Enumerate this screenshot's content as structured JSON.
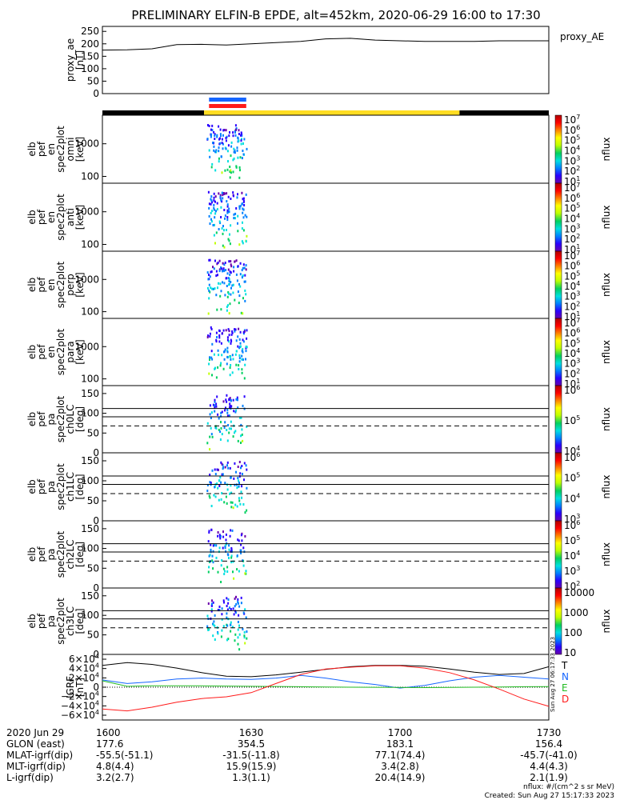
{
  "title": "PRELIMINARY ELFIN-B EPDE, alt=452km, 2020-06-29 16:00 to 17:30",
  "colors": {
    "black": "#000000",
    "blue": "#1565ff",
    "red": "#ff1a1a",
    "yellow": "#ffdd22",
    "green": "#22bb22",
    "colorbar_stops": [
      "#6a00aa",
      "#2a00ff",
      "#0080ff",
      "#00e0e0",
      "#00d060",
      "#c0ff00",
      "#ffff00",
      "#ff8000",
      "#ff0000",
      "#b00000"
    ]
  },
  "panels": [
    {
      "id": "proxy_ae",
      "ylabel": [
        "proxy_ae",
        "[nT]"
      ],
      "yticks": [
        "250",
        "200",
        "150",
        "100",
        "50",
        "0"
      ],
      "right_label": "proxy_AE"
    },
    {
      "id": "omni",
      "ylabel": [
        "elb",
        "pef",
        "en",
        "spec2plot",
        "omni",
        "[keV]"
      ],
      "yticks": [
        "1000",
        "100"
      ],
      "cbar_ticks": [
        "10^7",
        "10^6",
        "10^5",
        "10^4",
        "10^3",
        "10^2",
        "10^1"
      ],
      "cbar_label": "nflux"
    },
    {
      "id": "anti",
      "ylabel": [
        "elb",
        "pef",
        "en",
        "spec2plot",
        "anti",
        "[keV]"
      ],
      "yticks": [
        "1000",
        "100"
      ],
      "cbar_ticks": [
        "10^7",
        "10^6",
        "10^5",
        "10^4",
        "10^3",
        "10^2",
        "10^1"
      ],
      "cbar_label": "nflux"
    },
    {
      "id": "perp",
      "ylabel": [
        "elb",
        "pef",
        "en",
        "spec2plot",
        "perp",
        "[keV]"
      ],
      "yticks": [
        "1000",
        "100"
      ],
      "cbar_ticks": [
        "10^7",
        "10^6",
        "10^5",
        "10^4",
        "10^3",
        "10^2",
        "10^1"
      ],
      "cbar_label": "nflux"
    },
    {
      "id": "para",
      "ylabel": [
        "elb",
        "pef",
        "en",
        "spec2plot",
        "para",
        "[keV]"
      ],
      "yticks": [
        "1000",
        "100"
      ],
      "cbar_ticks": [
        "10^7",
        "10^6",
        "10^5",
        "10^4",
        "10^3",
        "10^2",
        "10^1"
      ],
      "cbar_label": "nflux"
    },
    {
      "id": "ch0LC",
      "ylabel": [
        "elb",
        "pef",
        "pa",
        "spec2plot",
        "ch0LC",
        "[deg]"
      ],
      "yticks": [
        "150",
        "100",
        "50",
        "0"
      ],
      "cbar_ticks": [
        "10^6",
        "10^5",
        "10^4"
      ],
      "cbar_label": "nflux"
    },
    {
      "id": "ch1LC",
      "ylabel": [
        "elb",
        "pef",
        "pa",
        "spec2plot",
        "ch1LC",
        "[deg]"
      ],
      "yticks": [
        "150",
        "100",
        "50",
        "0"
      ],
      "cbar_ticks": [
        "10^6",
        "10^5",
        "10^4",
        "10^3"
      ],
      "cbar_label": "nflux"
    },
    {
      "id": "ch2LC",
      "ylabel": [
        "elb",
        "pef",
        "pa",
        "spec2plot",
        "ch2LC",
        "[deg]"
      ],
      "yticks": [
        "150",
        "100",
        "50",
        "0"
      ],
      "cbar_ticks": [
        "10^6",
        "10^5",
        "10^4",
        "10^3",
        "10^2"
      ],
      "cbar_label": "nflux"
    },
    {
      "id": "ch3LC",
      "ylabel": [
        "elb",
        "pef",
        "pa",
        "spec2plot",
        "ch3LC",
        "[deg]"
      ],
      "yticks": [
        "150",
        "100",
        "50",
        "0"
      ],
      "cbar_ticks": [
        "10000",
        "1000",
        "100",
        "10"
      ],
      "cbar_label": "nflux"
    },
    {
      "id": "igrf",
      "ylabel": [
        "IGRF",
        "[nT]"
      ],
      "yticks": [
        "6×10^4",
        "4×10^4",
        "2×10^4",
        "0",
        "−2×10^4",
        "−4×10^4",
        "−6×10^4"
      ],
      "legend": [
        {
          "label": "T",
          "color": "#000000"
        },
        {
          "label": "N",
          "color": "#1565ff"
        },
        {
          "label": "E",
          "color": "#22bb22"
        },
        {
          "label": "D",
          "color": "#ff1a1a"
        }
      ]
    }
  ],
  "chart_data": {
    "type": "line",
    "title": "PRELIMINARY ELFIN-B EPDE, alt=452km, 2020-06-29 16:00 to 17:30",
    "x_range": [
      "2020-06-29 16:00",
      "2020-06-29 17:30"
    ],
    "proxy_ae": {
      "ylim": [
        0,
        270
      ],
      "x_minutes": [
        0,
        5,
        10,
        15,
        20,
        25,
        30,
        35,
        40,
        45,
        50,
        55,
        60,
        65,
        70,
        75,
        80,
        85,
        90
      ],
      "values": [
        175,
        176,
        180,
        197,
        198,
        195,
        200,
        205,
        210,
        220,
        222,
        215,
        212,
        210,
        210,
        210,
        212,
        212,
        212
      ]
    },
    "science_zones": [
      {
        "start_min": 21.5,
        "end_min": 29,
        "color": "#1565ff"
      },
      {
        "start_min": 21.5,
        "end_min": 29,
        "color": "#ff1a1a"
      }
    ],
    "orbit_bar": [
      {
        "start_min": 0,
        "end_min": 20.5,
        "color": "#000000"
      },
      {
        "start_min": 20.5,
        "end_min": 72,
        "color": "#ffdd22"
      },
      {
        "start_min": 72,
        "end_min": 90,
        "color": "#000000"
      }
    ],
    "spectrogram_activity_minutes": [
      21,
      29
    ],
    "lc_reference_lines_deg": [
      112,
      91
    ],
    "lc_dashed_line_deg": 68,
    "igrf": {
      "ylim": [
        -65000,
        65000
      ],
      "x_minutes": [
        0,
        5,
        10,
        15,
        20,
        25,
        30,
        35,
        40,
        45,
        50,
        55,
        60,
        65,
        70,
        75,
        80,
        85,
        90
      ],
      "series": [
        {
          "name": "T",
          "color": "#000000",
          "values": [
            48000,
            54000,
            50000,
            42000,
            32000,
            24000,
            23000,
            27000,
            33000,
            39000,
            45000,
            48000,
            48000,
            46000,
            40000,
            33000,
            28000,
            30000,
            45000
          ]
        },
        {
          "name": "N",
          "color": "#1565ff",
          "values": [
            16000,
            8000,
            12000,
            18000,
            20000,
            18000,
            17000,
            20000,
            26000,
            20000,
            12000,
            6000,
            -2000,
            4000,
            14000,
            22000,
            26000,
            22000,
            18000
          ]
        },
        {
          "name": "E",
          "color": "#22bb22",
          "values": [
            14000,
            2000,
            3000,
            3000,
            3000,
            2500,
            2000,
            1500,
            1000,
            500,
            0,
            -200,
            -500,
            -800,
            -500,
            0,
            500,
            1000,
            1200
          ]
        },
        {
          "name": "D",
          "color": "#ff1a1a",
          "values": [
            -48000,
            -52000,
            -44000,
            -33000,
            -25000,
            -21000,
            -12000,
            8000,
            28000,
            40000,
            44000,
            47000,
            47000,
            42000,
            32000,
            16000,
            -4000,
            -26000,
            -42000
          ]
        }
      ]
    },
    "x_tick_labels": [
      "1600",
      "1630",
      "1700",
      "1730"
    ]
  },
  "ephemeris": {
    "rows": [
      {
        "label": "2020 Jun 29",
        "values": [
          "1600",
          "1630",
          "1700",
          "1730"
        ]
      },
      {
        "label": "GLON (east)",
        "values": [
          "177.6",
          "354.5",
          "183.1",
          "156.4"
        ]
      },
      {
        "label": "MLAT-igrf(dip)",
        "values": [
          "-55.5(-51.1)",
          "-31.5(-11.8)",
          "77.1(74.4)",
          "-45.7(-41.0)"
        ]
      },
      {
        "label": "MLT-igrf(dip)",
        "values": [
          "4.8(4.4)",
          "15.9(15.9)",
          "3.4(2.8)",
          "4.4(4.3)"
        ]
      },
      {
        "label": "L-igrf(dip)",
        "values": [
          "3.2(2.7)",
          "1.3(1.1)",
          "20.4(14.9)",
          "2.1(1.9)"
        ]
      }
    ]
  },
  "footer": {
    "units": "nflux: #/(cm^2 s sr MeV)",
    "created": "Created: Sun Aug 27 15:17:33 2023",
    "side_stamp": "Sun Aug 27 06:17:33 2023"
  }
}
